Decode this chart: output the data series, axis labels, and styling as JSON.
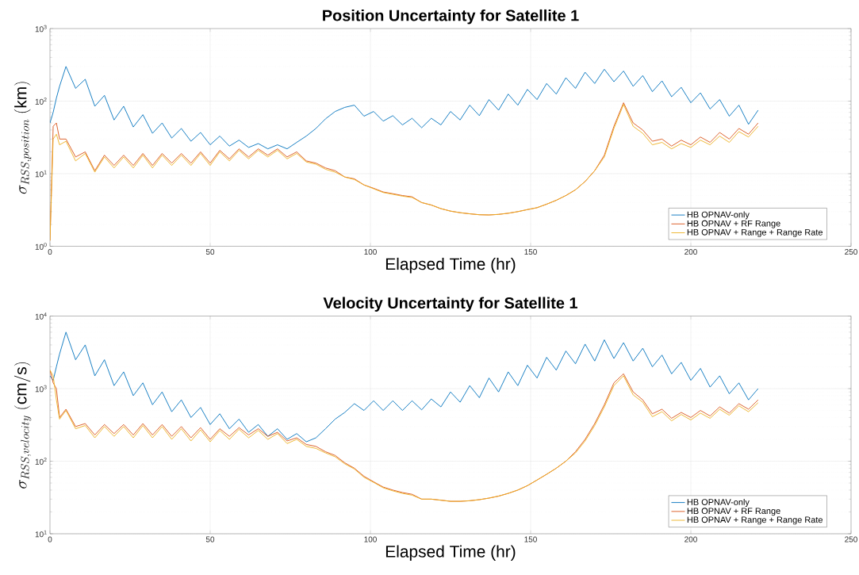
{
  "chart_data": [
    {
      "type": "line",
      "title": "Position Uncertainty for Satellite 1",
      "xlabel": "Elapsed Time (hr)",
      "ylabel": "\\sigma_{RSS,position}\\ (\\mathrm{km})",
      "log": "y",
      "grid": true,
      "legend": "bottom right",
      "xlim": [
        0,
        250
      ],
      "xticks": [
        0,
        50,
        100,
        150,
        200,
        250
      ],
      "ylim": [
        1,
        1000
      ],
      "yticks": [
        {
          "value": 1,
          "label": "10$^{0}$"
        },
        {
          "value": 10,
          "label": "10$^{1}$"
        },
        {
          "value": 100,
          "label": "10$^{2}$"
        },
        {
          "value": 1000,
          "label": "10$^{3}$"
        }
      ],
      "x": [
        0,
        1,
        2,
        3,
        5,
        8,
        11,
        14,
        17,
        20,
        23,
        26,
        29,
        32,
        35,
        38,
        41,
        44,
        47,
        50,
        53,
        56,
        59,
        62,
        65,
        68,
        71,
        74,
        77,
        80,
        83,
        86,
        89,
        92,
        95,
        98,
        101,
        104,
        107,
        110,
        113,
        116,
        119,
        122,
        125,
        128,
        131,
        134,
        137,
        140,
        143,
        146,
        149,
        152,
        155,
        158,
        161,
        164,
        167,
        170,
        173,
        176,
        179,
        182,
        185,
        188,
        191,
        194,
        197,
        200,
        203,
        206,
        209,
        212,
        215,
        218,
        221
      ],
      "series": [
        {
          "name": "HB OPNAV-only",
          "color": "#0072bd",
          "values": [
            50,
            70,
            110,
            160,
            300,
            150,
            200,
            85,
            120,
            55,
            85,
            44,
            65,
            36,
            50,
            31,
            42,
            28,
            37,
            25,
            33,
            24,
            29,
            23,
            26,
            22,
            25,
            22,
            27,
            33,
            42,
            57,
            72,
            82,
            88,
            62,
            72,
            53,
            63,
            47,
            58,
            43,
            58,
            47,
            72,
            55,
            88,
            63,
            105,
            75,
            125,
            88,
            145,
            105,
            175,
            125,
            210,
            150,
            250,
            175,
            275,
            185,
            260,
            160,
            225,
            135,
            190,
            115,
            155,
            95,
            130,
            78,
            105,
            62,
            88,
            48,
            75
          ]
        },
        {
          "name": "HB OPNAV + RF Range",
          "color": "#d95319",
          "values": [
            1.2,
            45,
            50,
            30,
            30,
            17,
            20,
            11,
            18,
            13,
            18,
            13,
            19,
            13,
            19,
            14,
            19,
            14,
            20,
            14,
            21,
            16,
            22,
            17,
            22,
            18,
            22,
            17,
            20,
            15,
            14,
            12,
            11,
            9,
            8.5,
            7,
            6.3,
            5.6,
            5.3,
            5,
            4.8,
            4,
            3.7,
            3.3,
            3.05,
            2.9,
            2.8,
            2.72,
            2.7,
            2.75,
            2.85,
            3,
            3.2,
            3.4,
            3.8,
            4.3,
            5,
            6,
            7.8,
            11,
            18,
            45,
            95,
            50,
            40,
            28,
            30,
            24,
            29,
            25,
            32,
            27,
            37,
            30,
            42,
            35,
            50
          ]
        },
        {
          "name": "HB OPNAV + Range + Range Rate",
          "color": "#edb120",
          "values": [
            1.2,
            30,
            35,
            25,
            28,
            15,
            19,
            10.5,
            17,
            12,
            17,
            12,
            18,
            12,
            18,
            13,
            18,
            13,
            19,
            13,
            20,
            15,
            21,
            16,
            21,
            17,
            21,
            16,
            19,
            14.5,
            13.5,
            11.5,
            10.5,
            9,
            8.3,
            7,
            6.2,
            5.5,
            5.2,
            4.9,
            4.7,
            4,
            3.7,
            3.3,
            3.05,
            2.9,
            2.8,
            2.72,
            2.7,
            2.75,
            2.85,
            3,
            3.2,
            3.4,
            3.8,
            4.3,
            5,
            6,
            7.8,
            11,
            17,
            42,
            90,
            45,
            36,
            25,
            27,
            22,
            26,
            23,
            29,
            25,
            33,
            27,
            38,
            32,
            45
          ]
        }
      ]
    },
    {
      "type": "line",
      "title": "Velocity Uncertainty for Satellite 1",
      "xlabel": "Elapsed Time (hr)",
      "ylabel": "\\sigma_{RSS,velocity}\\ (\\mathrm{cm/s})",
      "log": "y",
      "grid": true,
      "legend": "bottom right",
      "xlim": [
        0,
        250
      ],
      "xticks": [
        0,
        50,
        100,
        150,
        200,
        250
      ],
      "ylim": [
        10,
        10000
      ],
      "yticks": [
        {
          "value": 10,
          "label": "10$^{1}$"
        },
        {
          "value": 100,
          "label": "10$^{2}$"
        },
        {
          "value": 1000,
          "label": "10$^{3}$"
        },
        {
          "value": 10000,
          "label": "10$^{4}$"
        }
      ],
      "x": [
        0,
        1,
        2,
        3,
        5,
        8,
        11,
        14,
        17,
        20,
        23,
        26,
        29,
        32,
        35,
        38,
        41,
        44,
        47,
        50,
        53,
        56,
        59,
        62,
        65,
        68,
        71,
        74,
        77,
        80,
        83,
        86,
        89,
        92,
        95,
        98,
        101,
        104,
        107,
        110,
        113,
        116,
        119,
        122,
        125,
        128,
        131,
        134,
        137,
        140,
        143,
        146,
        149,
        152,
        155,
        158,
        161,
        164,
        167,
        170,
        173,
        176,
        179,
        182,
        185,
        188,
        191,
        194,
        197,
        200,
        203,
        206,
        209,
        212,
        215,
        218,
        221
      ],
      "series": [
        {
          "name": "HB OPNAV-only",
          "color": "#0072bd",
          "values": [
            1500,
            1300,
            2000,
            3000,
            6000,
            2500,
            4000,
            1500,
            2500,
            1100,
            1700,
            800,
            1200,
            600,
            900,
            480,
            700,
            400,
            550,
            320,
            450,
            280,
            380,
            250,
            320,
            220,
            280,
            200,
            240,
            185,
            210,
            280,
            380,
            470,
            620,
            500,
            680,
            500,
            680,
            500,
            680,
            510,
            720,
            560,
            900,
            650,
            1100,
            750,
            1400,
            900,
            1700,
            1100,
            2100,
            1400,
            2700,
            1800,
            3300,
            2200,
            4100,
            2400,
            4700,
            2600,
            4300,
            2400,
            3600,
            2000,
            2900,
            1600,
            2300,
            1300,
            1900,
            1050,
            1500,
            850,
            1200,
            700,
            1000
          ]
        },
        {
          "name": "HB OPNAV + RF Range",
          "color": "#d95319",
          "values": [
            1800,
            1200,
            1000,
            400,
            520,
            300,
            330,
            230,
            320,
            240,
            320,
            230,
            330,
            230,
            320,
            220,
            300,
            210,
            290,
            200,
            280,
            220,
            290,
            230,
            280,
            220,
            250,
            190,
            210,
            170,
            160,
            135,
            120,
            95,
            80,
            62,
            52,
            44,
            40,
            37,
            35,
            30,
            30,
            29,
            28,
            28,
            28.5,
            29.5,
            31,
            33,
            36,
            40,
            46,
            55,
            66,
            80,
            100,
            135,
            200,
            330,
            600,
            1200,
            1600,
            900,
            700,
            450,
            520,
            390,
            470,
            400,
            500,
            420,
            560,
            460,
            620,
            520,
            700
          ]
        },
        {
          "name": "HB OPNAV + Range + Range Rate",
          "color": "#edb120",
          "values": [
            1800,
            1500,
            700,
            380,
            500,
            280,
            310,
            210,
            300,
            220,
            300,
            210,
            310,
            210,
            300,
            200,
            280,
            190,
            270,
            185,
            265,
            200,
            275,
            210,
            265,
            200,
            240,
            175,
            200,
            160,
            150,
            130,
            115,
            92,
            78,
            60,
            51,
            43,
            39,
            36,
            34,
            30,
            30,
            29,
            28,
            28,
            28.5,
            29.5,
            31,
            33,
            36,
            40,
            46,
            55,
            66,
            80,
            100,
            130,
            190,
            310,
            560,
            1100,
            1500,
            820,
            650,
            410,
            480,
            360,
            440,
            370,
            460,
            390,
            520,
            430,
            580,
            480,
            640
          ]
        }
      ]
    }
  ]
}
